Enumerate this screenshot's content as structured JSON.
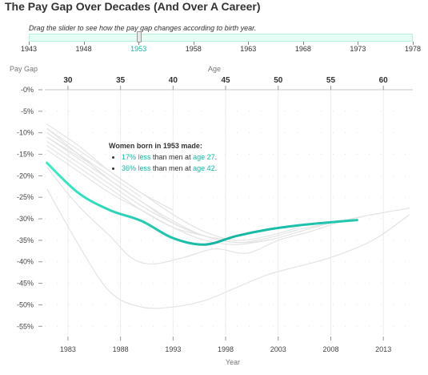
{
  "title": "The Pay Gap Over Decades (And Over A Career)",
  "slider": {
    "instruction": "Drag the slider to see how the pay gap changes according to birth year.",
    "ticks": [
      "1943",
      "1948",
      "1953",
      "1958",
      "1963",
      "1968",
      "1973",
      "1978"
    ],
    "selected": "1953",
    "selected_fraction": 0.286
  },
  "annotation": {
    "head": "Women born in 1953 made:",
    "line1": {
      "value": "17% less",
      "mid": " than men at ",
      "age": "age 27",
      "end": "."
    },
    "line2": {
      "value": "36% less",
      "mid": " than men at ",
      "age": "age 42",
      "end": "."
    }
  },
  "colors": {
    "accent": "#1ec3b0",
    "background_lines": "#e4e4e4",
    "highlight_text": "#1ab3a6"
  },
  "chart_data": {
    "type": "line",
    "ylabel": "Pay Gap",
    "top_axis_label": "Age",
    "xlabel": "Year",
    "xlim": [
      1980.8,
      2015.8
    ],
    "ylim": [
      -57,
      0
    ],
    "x_ticks": [
      1983,
      1988,
      1993,
      1998,
      2003,
      2008,
      2013
    ],
    "y_ticks": [
      0,
      -5,
      -10,
      -15,
      -20,
      -25,
      -30,
      -35,
      -40,
      -45,
      -50,
      -55
    ],
    "y_tick_labels": [
      "-0%",
      "-5%",
      "-10%",
      "-15%",
      "-20%",
      "-25%",
      "-30%",
      "-35%",
      "-40%",
      "-45%",
      "-50%",
      "-55%"
    ],
    "age_ticks": [
      "30",
      "35",
      "40",
      "45",
      "50",
      "55",
      "60"
    ],
    "grid": true,
    "series": [
      {
        "highlight": true,
        "x": [
          1981,
          1984,
          1987,
          1990,
          1993,
          1996,
          1999,
          2002,
          2005,
          2008,
          2010.5
        ],
        "y": [
          -17,
          -24,
          -28,
          -30.5,
          -34.5,
          -36,
          -34,
          -32.5,
          -31.5,
          -30.8,
          -30.3
        ]
      },
      {
        "x": [
          1981,
          1984,
          1987,
          1990,
          1993,
          1996,
          1999,
          2002,
          2005,
          2008,
          2012,
          2015.5
        ],
        "y": [
          -23,
          -36,
          -47,
          -50.5,
          -50.5,
          -49,
          -46,
          -43,
          -41,
          -39,
          -35,
          -29
        ]
      },
      {
        "x": [
          1981,
          1984,
          1987,
          1989,
          1991,
          1994,
          1997,
          2000,
          2003,
          2006,
          2010,
          2015.5
        ],
        "y": [
          -18,
          -27,
          -34,
          -39,
          -40.5,
          -39,
          -37,
          -38,
          -35,
          -33,
          -30,
          -27.5
        ]
      },
      {
        "x": [
          1981,
          1984,
          1987,
          1990,
          1993,
          1996,
          1999,
          2002,
          2005,
          2008,
          2011
        ],
        "y": [
          -10,
          -15,
          -21,
          -26,
          -30.5,
          -34,
          -35.5,
          -35,
          -33,
          -31,
          -29.5
        ]
      },
      {
        "x": [
          1981,
          1984,
          1987,
          1990,
          1993,
          1996,
          1999,
          2002,
          2005,
          2008
        ],
        "y": [
          -12,
          -17,
          -22,
          -27,
          -31,
          -34,
          -35.5,
          -34.5,
          -32.5,
          -31
        ]
      },
      {
        "x": [
          1981,
          1984,
          1987,
          1990,
          1993,
          1996,
          1999,
          2002,
          2005
        ],
        "y": [
          -8,
          -13,
          -19,
          -24,
          -29,
          -33,
          -35,
          -34,
          -32
        ]
      },
      {
        "x": [
          1981,
          1984,
          1987,
          1990,
          1993,
          1996,
          1999,
          2002
        ],
        "y": [
          -14,
          -19,
          -24,
          -28,
          -32,
          -35,
          -36,
          -35
        ]
      },
      {
        "x": [
          1981,
          1984,
          1987,
          1990,
          1993,
          1996,
          1999
        ],
        "y": [
          -11,
          -16,
          -21,
          -26,
          -31,
          -34,
          -35
        ]
      },
      {
        "x": [
          1981,
          1984,
          1987,
          1990,
          1993,
          1996
        ],
        "y": [
          -13,
          -18,
          -23,
          -28,
          -32,
          -34
        ]
      },
      {
        "x": [
          1981,
          1984,
          1987,
          1990,
          1993
        ],
        "y": [
          -9,
          -14,
          -19,
          -24,
          -28
        ]
      },
      {
        "x": [
          1981,
          1984,
          1987,
          1990
        ],
        "y": [
          -10,
          -15,
          -20,
          -25
        ]
      },
      {
        "x": [
          1981,
          1983,
          1985,
          1987
        ],
        "y": [
          -9,
          -13,
          -17,
          -21
        ]
      },
      {
        "x": [
          1981,
          1983,
          1985
        ],
        "y": [
          -11,
          -14,
          -17
        ]
      }
    ]
  }
}
